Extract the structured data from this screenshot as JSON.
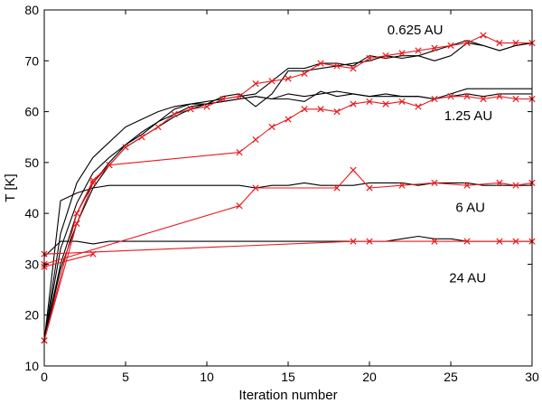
{
  "chart_data": {
    "type": "line",
    "title": "",
    "xlabel": "Iteration number",
    "ylabel": "T [K]",
    "xlim": [
      0,
      30
    ],
    "ylim": [
      10,
      80
    ],
    "xticks": [
      0,
      5,
      10,
      15,
      20,
      25,
      30
    ],
    "yticks": [
      10,
      20,
      30,
      40,
      50,
      60,
      70,
      80
    ],
    "grid": false,
    "colors": {
      "black": "#000000",
      "red": "#e8191e"
    },
    "annotations": [
      {
        "text": "0.625 AU",
        "x": 21.1,
        "y": 75.2
      },
      {
        "text": "1.25 AU",
        "x": 24.6,
        "y": 58.3
      },
      {
        "text": "6 AU",
        "x": 25.3,
        "y": 40.3
      },
      {
        "text": "24 AU",
        "x": 24.9,
        "y": 26.4
      }
    ],
    "series": [
      {
        "name": "0.625 AU (black)",
        "color": "black",
        "marker": "none",
        "x": [
          0,
          1,
          2,
          3,
          4,
          5,
          6,
          7,
          8,
          9,
          10,
          11,
          12,
          13,
          14,
          15,
          16,
          17,
          18,
          19,
          20,
          21,
          22,
          23,
          24,
          25,
          26,
          27,
          28,
          29,
          30
        ],
        "y": [
          15,
          36,
          46,
          51,
          54,
          57,
          58.5,
          60,
          61,
          61.5,
          62,
          62.5,
          63,
          63.5,
          66,
          68.5,
          68.5,
          69.5,
          69.5,
          69,
          71,
          70.5,
          71,
          71,
          72,
          73,
          74,
          73,
          72,
          73,
          73.5
        ]
      },
      {
        "name": "0.625 AU (black, run 2)",
        "color": "black",
        "marker": "none",
        "x": [
          0,
          1,
          2,
          3,
          4,
          5,
          6,
          7,
          8,
          9,
          10,
          11,
          12,
          13,
          14,
          15,
          16,
          17,
          18,
          19,
          20,
          21,
          22,
          23,
          24,
          25,
          26,
          27,
          28,
          29,
          30
        ],
        "y": [
          15,
          33,
          42,
          48,
          51,
          53.5,
          55.5,
          58,
          60.5,
          61.5,
          61.5,
          63,
          63.5,
          61,
          63.5,
          68,
          68,
          68.5,
          69,
          69.5,
          70,
          71,
          70.5,
          71,
          70,
          71,
          73.5,
          73,
          72,
          73,
          73.5
        ]
      },
      {
        "name": "1.25 AU (black)",
        "color": "black",
        "marker": "none",
        "x": [
          0,
          1,
          2,
          3,
          4,
          5,
          6,
          7,
          8,
          9,
          10,
          11,
          12,
          13,
          14,
          15,
          16,
          17,
          18,
          19,
          20,
          21,
          22,
          23,
          24,
          25,
          26,
          27,
          28,
          29,
          30
        ],
        "y": [
          15,
          30,
          40,
          46,
          50,
          53.5,
          56,
          58,
          59.5,
          61,
          61.5,
          62,
          62.5,
          63,
          62.5,
          62.5,
          62,
          64,
          63,
          63.5,
          63,
          63,
          63,
          63,
          62.5,
          63.5,
          64.5,
          64.5,
          64.5,
          64.5,
          64.5
        ]
      },
      {
        "name": "1.25 AU (black, run 2)",
        "color": "black",
        "marker": "none",
        "x": [
          0,
          1,
          2,
          3,
          4,
          5,
          6,
          7,
          8,
          9,
          10,
          11,
          12,
          13,
          14,
          15,
          16,
          17,
          18,
          19,
          20,
          21,
          22,
          23,
          24,
          25,
          26,
          27,
          28,
          29,
          30
        ],
        "y": [
          15,
          29,
          38,
          45,
          49.5,
          53,
          55,
          57,
          59,
          60.5,
          61.5,
          62,
          62.5,
          63,
          62.5,
          63.5,
          63,
          63.5,
          64,
          63.5,
          63,
          63.5,
          63,
          63,
          62.5,
          63,
          63.5,
          63,
          63.5,
          63.5,
          63.5
        ]
      },
      {
        "name": "6 AU (black)",
        "color": "black",
        "marker": "none",
        "x": [
          0,
          1,
          2,
          3,
          4,
          5,
          6,
          7,
          8,
          9,
          10,
          11,
          12,
          13,
          14,
          15,
          16,
          17,
          18,
          19,
          20,
          21,
          22,
          23,
          24,
          25,
          26,
          27,
          28,
          29,
          30
        ],
        "y": [
          15,
          42.5,
          44,
          45,
          45.5,
          45.5,
          45.5,
          45.5,
          45.5,
          45.5,
          45.5,
          45.5,
          45.5,
          45,
          45.5,
          45.5,
          46,
          45.5,
          45.5,
          45.5,
          46,
          46,
          46,
          45.5,
          46,
          46,
          46,
          45.5,
          45.5,
          45.5,
          45.5
        ]
      },
      {
        "name": "24 AU (black)",
        "color": "black",
        "marker": "none",
        "x": [
          0,
          1,
          2,
          3,
          4,
          5,
          6,
          7,
          8,
          9,
          10,
          11,
          12,
          13,
          14,
          15,
          16,
          17,
          18,
          19,
          20,
          21,
          22,
          23,
          24,
          25,
          26,
          27,
          28,
          29,
          30
        ],
        "y": [
          31.5,
          34.5,
          34.5,
          34,
          34.5,
          34.5,
          34.5,
          34.5,
          34.5,
          34.5,
          34.5,
          34.5,
          34.5,
          34.5,
          34.5,
          34.5,
          34.5,
          34.5,
          34.5,
          34.5,
          34.5,
          34.5,
          35,
          35.5,
          35,
          35,
          34.5,
          34.5,
          34.5,
          34.5,
          34.5
        ]
      },
      {
        "name": "0.625 AU (red)",
        "color": "red",
        "marker": "x",
        "x": [
          0,
          2,
          3,
          4,
          5,
          6,
          7,
          8,
          9,
          10,
          11,
          12,
          13,
          14,
          15,
          16,
          17,
          18,
          19,
          20,
          21,
          22,
          23,
          24,
          25,
          26,
          27,
          28,
          29,
          30
        ],
        "y": [
          15,
          40,
          46.5,
          49.5,
          53,
          55,
          57,
          59.5,
          60.5,
          61,
          62.5,
          63,
          65.5,
          66,
          66.5,
          67.5,
          69.5,
          69,
          68.5,
          70.5,
          71,
          71.5,
          72,
          72.5,
          73,
          73.5,
          75,
          73.5,
          73.5,
          73.5
        ]
      },
      {
        "name": "1.25 AU (red)",
        "color": "red",
        "marker": "x",
        "x": [
          0,
          2,
          3,
          4,
          12,
          13,
          14,
          15,
          16,
          17,
          18,
          19,
          20,
          21,
          22,
          23,
          24,
          25,
          26,
          27,
          28,
          29,
          30
        ],
        "y": [
          15,
          38,
          46,
          49.5,
          52,
          54.5,
          57,
          58.5,
          60.5,
          60.5,
          60,
          61.5,
          62,
          61.5,
          62,
          61,
          62.5,
          63,
          63,
          62.5,
          63,
          62.5,
          62.5
        ]
      },
      {
        "name": "6 AU (red)",
        "color": "red",
        "marker": "x",
        "x": [
          0,
          12,
          13,
          18,
          19,
          20,
          22,
          24,
          26,
          28,
          29,
          30
        ],
        "y": [
          30,
          41.5,
          45,
          45,
          48.5,
          45,
          45.5,
          46,
          45.5,
          46,
          45.5,
          46
        ]
      },
      {
        "name": "24 AU (red)",
        "color": "red",
        "marker": "x",
        "x": [
          0,
          19,
          20,
          24,
          26,
          28,
          29,
          30
        ],
        "y": [
          32,
          34.5,
          34.5,
          34.5,
          34.5,
          34.5,
          34.5,
          34.5
        ]
      },
      {
        "name": "24 AU (red, start)",
        "color": "red",
        "marker": "x",
        "x": [
          0,
          3
        ],
        "y": [
          29.5,
          32
        ]
      }
    ]
  }
}
